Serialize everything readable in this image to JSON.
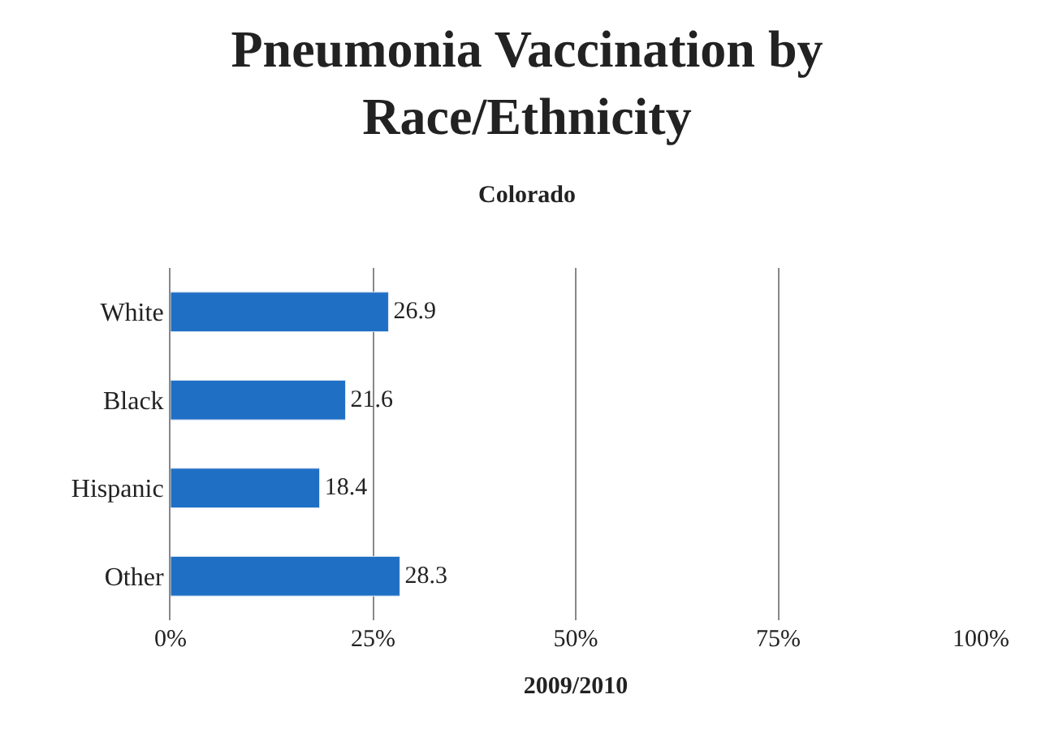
{
  "chart_data": {
    "type": "bar",
    "orientation": "horizontal",
    "title": "Pneumonia Vaccination by Race/Ethnicity",
    "subtitle": "Colorado",
    "xlabel": "2009/2010",
    "categories": [
      "White",
      "Black",
      "Hispanic",
      "Other"
    ],
    "values": [
      26.9,
      21.6,
      18.4,
      28.3
    ],
    "color": "#1f6fc5",
    "data_labels": true,
    "xlim": [
      0,
      100
    ],
    "xticks": [
      {
        "value": 0,
        "label": "0%"
      },
      {
        "value": 25,
        "label": "25%"
      },
      {
        "value": 50,
        "label": "50%"
      },
      {
        "value": 75,
        "label": "75%"
      },
      {
        "value": 100,
        "label": "100%"
      }
    ],
    "grid": "x"
  }
}
